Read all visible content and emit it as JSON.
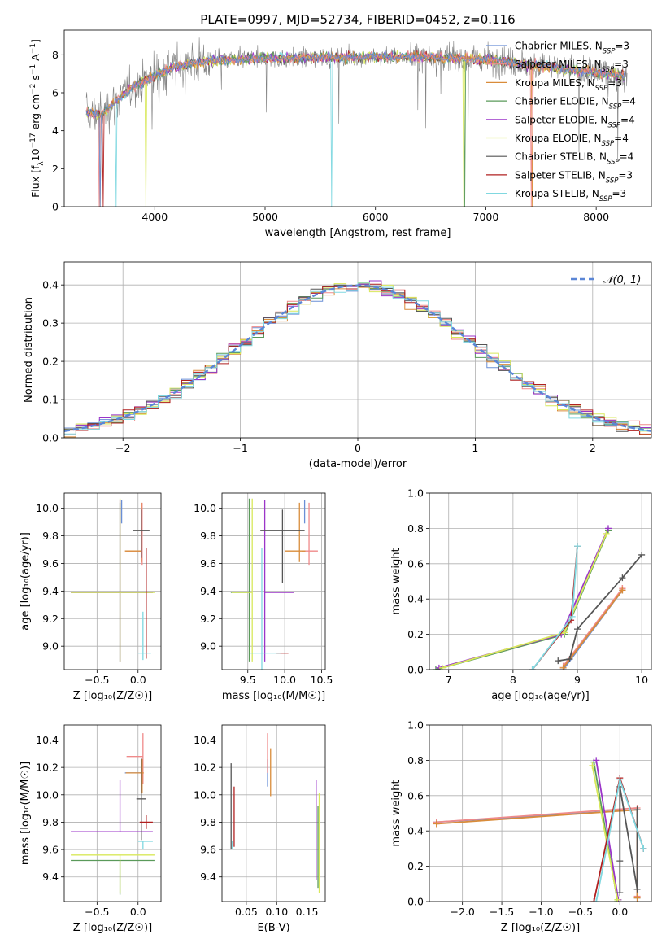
{
  "figure_title": "PLATE=0997, MJD=52734, FIBERID=0452, z=0.116",
  "colors": {
    "Chabrier MILES": "#6a8fd6",
    "Salpeter MILES": "#ef8a8a",
    "Kroupa MILES": "#d98c3a",
    "Chabrier ELODIE": "#5a9a5a",
    "Salpeter ELODIE": "#9b35c9",
    "Kroupa ELODIE": "#d8e85a",
    "Chabrier STELIB": "#555555",
    "Salpeter STELIB": "#b02020",
    "Kroupa STELIB": "#80d8e0"
  },
  "chart_data": [
    {
      "id": "spectrum",
      "type": "line",
      "xlabel": "wavelength [Angstrom, rest frame]",
      "ylabel_parts": [
        "Flux [f",
        "λ",
        "10",
        "−17",
        " erg cm",
        "−2",
        " s",
        "−1",
        " A",
        "−1",
        "]"
      ],
      "xlim": [
        3180,
        8500
      ],
      "ylim": [
        0,
        9.3
      ],
      "xticks": [
        "4000",
        "5000",
        "6000",
        "7000",
        "8000"
      ],
      "yticks": [
        "0",
        "2",
        "4",
        "6",
        "8"
      ],
      "legend": [
        {
          "name": "Chabrier MILES",
          "label": "Chabrier MILES, N",
          "sub": "SSP",
          "tail": "=3"
        },
        {
          "name": "Salpeter MILES",
          "label": "Salpeter MILES, N",
          "sub": "SSP",
          "tail": "=3"
        },
        {
          "name": "Kroupa MILES",
          "label": "Kroupa MILES, N",
          "sub": "SSP",
          "tail": "=3"
        },
        {
          "name": "Chabrier ELODIE",
          "label": "Chabrier ELODIE, N",
          "sub": "SSP",
          "tail": "=4"
        },
        {
          "name": "Salpeter ELODIE",
          "label": "Salpeter ELODIE, N",
          "sub": "SSP",
          "tail": "=4"
        },
        {
          "name": "Kroupa ELODIE",
          "label": "Kroupa ELODIE, N",
          "sub": "SSP",
          "tail": "=4"
        },
        {
          "name": "Chabrier STELIB",
          "label": "Chabrier STELIB, N",
          "sub": "SSP",
          "tail": "=4"
        },
        {
          "name": "Salpeter STELIB",
          "label": "Salpeter STELIB, N",
          "sub": "SSP",
          "tail": "=3"
        },
        {
          "name": "Kroupa STELIB",
          "label": "Kroupa STELIB, N",
          "sub": "SSP",
          "tail": "=3"
        }
      ],
      "continuum": [
        [
          3380,
          5.0
        ],
        [
          3500,
          4.8
        ],
        [
          3600,
          5.3
        ],
        [
          3800,
          6.3
        ],
        [
          4000,
          6.9
        ],
        [
          4200,
          7.4
        ],
        [
          4500,
          7.7
        ],
        [
          5000,
          7.8
        ],
        [
          5500,
          7.85
        ],
        [
          6000,
          7.9
        ],
        [
          6500,
          7.9
        ],
        [
          7000,
          7.75
        ],
        [
          7500,
          7.4
        ],
        [
          8000,
          7.05
        ],
        [
          8250,
          6.9
        ]
      ],
      "data_range": [
        3380,
        8280
      ],
      "model_range": [
        3380,
        8260
      ]
    },
    {
      "id": "residual_hist",
      "type": "line",
      "xlabel": "(data-model)/error",
      "ylabel": "Normed distribution",
      "xlim": [
        -2.5,
        2.5
      ],
      "ylim": [
        0,
        0.46
      ],
      "xticks": [
        "−2",
        "−1",
        "0",
        "1",
        "2"
      ],
      "yticks": [
        "0.0",
        "0.1",
        "0.2",
        "0.3",
        "0.4"
      ],
      "legend_label": "𝒩(0, 1)",
      "bin_width": 0.1,
      "reference": "gaussian mean 0, sigma 1"
    },
    {
      "id": "age_vs_Z",
      "type": "scatter",
      "xlabel": "Z [log₁₀(Z/Z☉)]",
      "ylabel": "age  [log₁₀(age/yr)]",
      "xlim": [
        -0.9,
        0.28
      ],
      "ylim": [
        8.83,
        10.11
      ],
      "xticks": [
        "−0.5",
        "0.0"
      ],
      "yticks": [
        "9.0",
        "9.2",
        "9.4",
        "9.6",
        "9.8",
        "10.0"
      ],
      "points": [
        {
          "series": "Chabrier MILES",
          "x": -0.2,
          "y": 9.97,
          "xerr": [
            0.0,
            0.0
          ],
          "yerr": [
            0.08,
            0.09
          ]
        },
        {
          "series": "Salpeter MILES",
          "x": 0.05,
          "y": 9.69,
          "xerr": [
            0.2,
            0.0
          ],
          "yerr": [
            0.1,
            0.35
          ]
        },
        {
          "series": "Kroupa MILES",
          "x": 0.04,
          "y": 9.69,
          "xerr": [
            0.2,
            0.0
          ],
          "yerr": [
            0.08,
            0.35
          ]
        },
        {
          "series": "Chabrier ELODIE",
          "x": -0.22,
          "y": 9.39,
          "xerr": [
            0.6,
            0.4
          ],
          "yerr": [
            0.5,
            0.65
          ]
        },
        {
          "series": "Salpeter ELODIE",
          "x": -0.22,
          "y": 9.39,
          "xerr": [
            0.6,
            0.4
          ],
          "yerr": [
            0.5,
            0.67
          ]
        },
        {
          "series": "Kroupa ELODIE",
          "x": -0.22,
          "y": 9.39,
          "xerr": [
            0.6,
            0.42
          ],
          "yerr": [
            0.5,
            0.68
          ]
        },
        {
          "series": "Chabrier STELIB",
          "x": 0.04,
          "y": 9.84,
          "xerr": [
            0.1,
            0.1
          ],
          "yerr": [
            0.2,
            0.15
          ]
        },
        {
          "series": "Salpeter STELIB",
          "x": 0.1,
          "y": 8.95,
          "xerr": [
            0.0,
            0.0
          ],
          "yerr": [
            0.04,
            0.76
          ]
        },
        {
          "series": "Kroupa STELIB",
          "x": 0.06,
          "y": 8.95,
          "xerr": [
            0.06,
            0.1
          ],
          "yerr": [
            0.05,
            0.3
          ]
        }
      ]
    },
    {
      "id": "age_vs_mass",
      "type": "scatter",
      "xlabel": "mass [log₁₀(M/M☉)]",
      "ylabel": "",
      "xlim": [
        9.15,
        10.55
      ],
      "ylim": [
        8.83,
        10.11
      ],
      "xticks": [
        "9.5",
        "10.0",
        "10.5"
      ],
      "yticks": [
        "9.0",
        "9.2",
        "9.4",
        "9.6",
        "9.8",
        "10.0"
      ],
      "points": [
        {
          "series": "Chabrier MILES",
          "x": 10.27,
          "y": 9.97,
          "xerr": [
            0.0,
            0.0
          ],
          "yerr": [
            0.08,
            0.09
          ]
        },
        {
          "series": "Salpeter MILES",
          "x": 10.33,
          "y": 9.69,
          "xerr": [
            0.1,
            0.12
          ],
          "yerr": [
            0.1,
            0.35
          ]
        },
        {
          "series": "Kroupa MILES",
          "x": 10.2,
          "y": 9.69,
          "xerr": [
            0.2,
            0.08
          ],
          "yerr": [
            0.08,
            0.35
          ]
        },
        {
          "series": "Chabrier ELODIE",
          "x": 9.52,
          "y": 9.39,
          "xerr": [
            0.25,
            0.0
          ],
          "yerr": [
            0.5,
            0.68
          ]
        },
        {
          "series": "Salpeter ELODIE",
          "x": 9.73,
          "y": 9.39,
          "xerr": [
            0.0,
            0.4
          ],
          "yerr": [
            0.5,
            0.67
          ]
        },
        {
          "series": "Kroupa ELODIE",
          "x": 9.56,
          "y": 9.39,
          "xerr": [
            0.28,
            0.0
          ],
          "yerr": [
            0.5,
            0.68
          ]
        },
        {
          "series": "Chabrier STELIB",
          "x": 9.97,
          "y": 9.84,
          "xerr": [
            0.3,
            0.3
          ],
          "yerr": [
            0.38,
            0.15
          ]
        },
        {
          "series": "Salpeter STELIB",
          "x": 9.97,
          "y": 8.95,
          "xerr": [
            0.08,
            0.08
          ],
          "yerr": [
            0.0,
            0.0
          ]
        },
        {
          "series": "Kroupa STELIB",
          "x": 9.69,
          "y": 8.95,
          "xerr": [
            0.16,
            0.25
          ],
          "yerr": [
            0.15,
            0.76
          ]
        }
      ]
    },
    {
      "id": "weight_vs_age",
      "type": "line",
      "xlabel": "age  [log₁₀(age/yr)]",
      "ylabel": "mass weight",
      "xlim": [
        6.7,
        10.15
      ],
      "ylim": [
        0,
        1.0
      ],
      "xticks": [
        "7",
        "8",
        "9",
        "10"
      ],
      "yticks": [
        "0.0",
        "0.2",
        "0.4",
        "0.6",
        "0.8",
        "1.0"
      ],
      "series": [
        {
          "name": "Chabrier MILES",
          "x": [
            8.78,
            9.7,
            9.7
          ],
          "y": [
            0.0,
            0.45,
            0.45
          ]
        },
        {
          "name": "Salpeter MILES",
          "x": [
            8.78,
            9.7,
            9.7
          ],
          "y": [
            0.02,
            0.46,
            0.46
          ]
        },
        {
          "name": "Kroupa MILES",
          "x": [
            8.78,
            9.7,
            9.7
          ],
          "y": [
            0.01,
            0.45,
            0.45
          ]
        },
        {
          "name": "Chabrier ELODIE",
          "x": [
            6.8,
            8.8,
            9.48
          ],
          "y": [
            0.0,
            0.2,
            0.79
          ]
        },
        {
          "name": "Salpeter ELODIE",
          "x": [
            6.85,
            8.75,
            9.48
          ],
          "y": [
            0.01,
            0.2,
            0.8
          ]
        },
        {
          "name": "Kroupa ELODIE",
          "x": [
            6.9,
            8.8,
            9.45
          ],
          "y": [
            0.01,
            0.21,
            0.77
          ]
        },
        {
          "name": "Chabrier STELIB",
          "x": [
            8.7,
            8.88,
            9.0,
            9.7,
            10.0
          ],
          "y": [
            0.05,
            0.06,
            0.23,
            0.52,
            0.65
          ]
        },
        {
          "name": "Salpeter STELIB",
          "x": [
            8.3,
            8.9,
            9.0
          ],
          "y": [
            0.0,
            0.28,
            0.7
          ]
        },
        {
          "name": "Kroupa STELIB",
          "x": [
            8.3,
            8.92,
            9.0
          ],
          "y": [
            0.0,
            0.3,
            0.7
          ]
        }
      ]
    },
    {
      "id": "mass_vs_Z",
      "type": "scatter",
      "xlabel": "Z [log₁₀(Z/Z☉)]",
      "ylabel": "mass [log₁₀(M/M☉)]",
      "xlim": [
        -0.9,
        0.28
      ],
      "ylim": [
        9.22,
        10.51
      ],
      "xticks": [
        "−0.5",
        "0.0"
      ],
      "yticks": [
        "9.4",
        "9.6",
        "9.8",
        "10.0",
        "10.2",
        "10.4"
      ],
      "points": [
        {
          "series": "Chabrier MILES",
          "x": 0.04,
          "y": 10.16,
          "xerr": [
            0.2,
            0.02
          ],
          "yerr": [
            0.1,
            0.1
          ]
        },
        {
          "series": "Salpeter MILES",
          "x": 0.06,
          "y": 10.28,
          "xerr": [
            0.2,
            0.0
          ],
          "yerr": [
            0.2,
            0.17
          ]
        },
        {
          "series": "Kroupa MILES",
          "x": 0.05,
          "y": 10.16,
          "xerr": [
            0.2,
            0.02
          ],
          "yerr": [
            0.15,
            0.1
          ]
        },
        {
          "series": "Chabrier ELODIE",
          "x": -0.22,
          "y": 9.52,
          "xerr": [
            0.6,
            0.42
          ],
          "yerr": [
            0.25,
            0.0
          ]
        },
        {
          "series": "Salpeter ELODIE",
          "x": -0.22,
          "y": 9.73,
          "xerr": [
            0.6,
            0.4
          ],
          "yerr": [
            0.0,
            0.38
          ]
        },
        {
          "series": "Kroupa ELODIE",
          "x": -0.22,
          "y": 9.56,
          "xerr": [
            0.6,
            0.42
          ],
          "yerr": [
            0.28,
            0.0
          ]
        },
        {
          "series": "Chabrier STELIB",
          "x": 0.04,
          "y": 9.97,
          "xerr": [
            0.06,
            0.06
          ],
          "yerr": [
            0.3,
            0.3
          ]
        },
        {
          "series": "Salpeter STELIB",
          "x": 0.1,
          "y": 9.8,
          "xerr": [
            0.08,
            0.08
          ],
          "yerr": [
            0.05,
            0.05
          ]
        },
        {
          "series": "Kroupa STELIB",
          "x": 0.06,
          "y": 9.66,
          "xerr": [
            0.06,
            0.12
          ],
          "yerr": [
            0.06,
            0.0
          ]
        }
      ]
    },
    {
      "id": "mass_vs_ebv",
      "type": "scatter",
      "xlabel": "E(B-V)",
      "ylabel": "",
      "xlim": [
        0.01,
        0.18
      ],
      "ylim": [
        9.22,
        10.51
      ],
      "xticks": [
        "0.05",
        "0.10",
        "0.15"
      ],
      "yticks": [
        "9.4",
        "9.6",
        "9.8",
        "10.0",
        "10.2",
        "10.4"
      ],
      "points": [
        {
          "series": "Chabrier MILES",
          "x": 0.085,
          "y": 10.16,
          "yerr": [
            0.1,
            0.1
          ]
        },
        {
          "series": "Salpeter MILES",
          "x": 0.085,
          "y": 10.28,
          "yerr": [
            0.12,
            0.17
          ]
        },
        {
          "series": "Kroupa MILES",
          "x": 0.09,
          "y": 10.16,
          "yerr": [
            0.17,
            0.18
          ]
        },
        {
          "series": "Chabrier ELODIE",
          "x": 0.168,
          "y": 9.52,
          "yerr": [
            0.2,
            0.4
          ]
        },
        {
          "series": "Salpeter ELODIE",
          "x": 0.165,
          "y": 9.73,
          "yerr": [
            0.35,
            0.38
          ]
        },
        {
          "series": "Kroupa ELODIE",
          "x": 0.17,
          "y": 9.56,
          "yerr": [
            0.28,
            0.45
          ]
        },
        {
          "series": "Chabrier STELIB",
          "x": 0.025,
          "y": 9.97,
          "yerr": [
            0.37,
            0.26
          ]
        },
        {
          "series": "Salpeter STELIB",
          "x": 0.03,
          "y": 9.8,
          "yerr": [
            0.18,
            0.26
          ]
        },
        {
          "series": "Kroupa STELIB",
          "x": 0.027,
          "y": 9.66,
          "yerr": [
            0.06,
            0.0
          ]
        }
      ]
    },
    {
      "id": "weight_vs_Z",
      "type": "line",
      "xlabel": "Z [log₁₀(Z/Z☉)]",
      "ylabel": "mass weight",
      "xlim": [
        -2.42,
        0.4
      ],
      "ylim": [
        0,
        1.0
      ],
      "xticks": [
        "−2.0",
        "−1.5",
        "−1.0",
        "−0.5",
        "0.0"
      ],
      "yticks": [
        "0.0",
        "0.2",
        "0.4",
        "0.6",
        "0.8",
        "1.0"
      ],
      "series": [
        {
          "name": "Chabrier MILES",
          "x": [
            -2.33,
            0.22,
            0.22
          ],
          "y": [
            0.45,
            0.52,
            0.02
          ]
        },
        {
          "name": "Salpeter MILES",
          "x": [
            -2.33,
            0.22,
            0.22
          ],
          "y": [
            0.45,
            0.53,
            0.03
          ]
        },
        {
          "name": "Kroupa MILES",
          "x": [
            -2.33,
            0.22,
            0.22
          ],
          "y": [
            0.44,
            0.52,
            0.02
          ]
        },
        {
          "name": "Chabrier ELODIE",
          "x": [
            -0.33,
            -0.03
          ],
          "y": [
            0.79,
            0.0
          ]
        },
        {
          "name": "Salpeter ELODIE",
          "x": [
            -0.3,
            -0.02
          ],
          "y": [
            0.8,
            0.01
          ]
        },
        {
          "name": "Kroupa ELODIE",
          "x": [
            -0.35,
            -0.03
          ],
          "y": [
            0.77,
            0.01
          ]
        },
        {
          "name": "Chabrier STELIB",
          "x": [
            0.0,
            0.0,
            0.0,
            0.22,
            0.22
          ],
          "y": [
            0.05,
            0.23,
            0.65,
            0.07,
            0.52
          ]
        },
        {
          "name": "Salpeter STELIB",
          "x": [
            -0.33,
            0.0,
            0.3
          ],
          "y": [
            0.0,
            0.7,
            0.3
          ]
        },
        {
          "name": "Kroupa STELIB",
          "x": [
            -0.3,
            0.0,
            0.3
          ],
          "y": [
            0.0,
            0.69,
            0.3
          ]
        }
      ]
    }
  ]
}
